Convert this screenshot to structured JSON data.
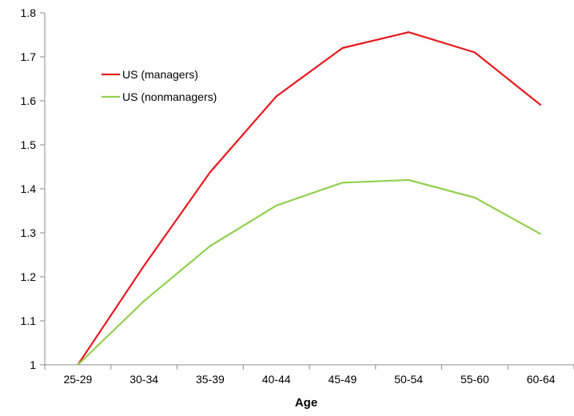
{
  "chart_data": {
    "type": "line",
    "categories": [
      "25-29",
      "30-34",
      "35-39",
      "40-44",
      "45-49",
      "50-54",
      "55-60",
      "60-64"
    ],
    "series": [
      {
        "name": "US (managers)",
        "color": "#e8191f",
        "values": [
          1.0,
          1.225,
          1.438,
          1.61,
          1.72,
          1.756,
          1.71,
          1.59
        ]
      },
      {
        "name": "US (nonmanagers)",
        "color": "#92d050",
        "values": [
          1.0,
          1.145,
          1.27,
          1.362,
          1.414,
          1.42,
          1.38,
          1.297
        ]
      }
    ],
    "xlabel": "Age",
    "ylabel": "",
    "ylim": [
      1,
      1.8
    ],
    "yticks": [
      "1",
      "1.1",
      "1.2",
      "1.3",
      "1.4",
      "1.5",
      "1.6",
      "1.7",
      "1.8"
    ],
    "grid": false,
    "legend_position": "top-left"
  }
}
